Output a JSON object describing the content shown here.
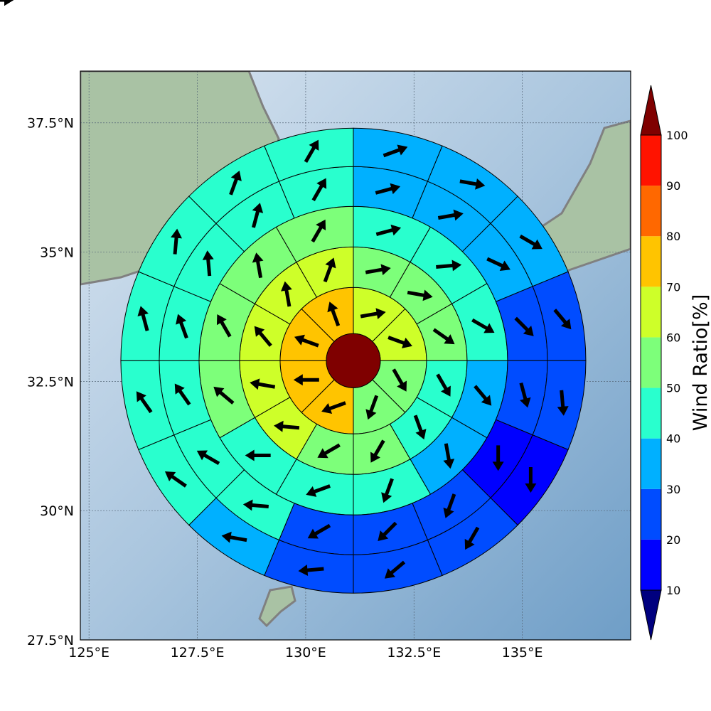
{
  "chart_data": {
    "type": "heatmap",
    "title": "",
    "xlabel": "",
    "ylabel": "",
    "projection": "map",
    "xlim": [
      124.8,
      137.5
    ],
    "ylim": [
      27.5,
      38.5
    ],
    "grid": true,
    "x_ticks": [
      125,
      127.5,
      130,
      132.5,
      135
    ],
    "x_tick_labels": [
      "125°E",
      "127.5°E",
      "130°E",
      "132.5°E",
      "135°E"
    ],
    "y_ticks": [
      27.5,
      30,
      32.5,
      35,
      37.5
    ],
    "y_tick_labels": [
      "27.5°N",
      "30°N",
      "32.5°N",
      "35°N",
      "37.5°N"
    ],
    "center": {
      "lon": 131.1,
      "lat": 32.9
    },
    "center_value": 105,
    "rings": [
      {
        "ring": 1,
        "sectors": 8,
        "values": [
          62,
          62,
          55,
          55,
          72,
          72,
          72,
          72
        ],
        "arrow_deg": [
          80,
          110,
          150,
          200,
          250,
          270,
          290,
          340
        ]
      },
      {
        "ring": 2,
        "sectors": 12,
        "values": [
          56,
          54,
          52,
          45,
          42,
          53,
          58,
          65,
          63,
          64,
          64,
          62
        ],
        "arrow_deg": [
          80,
          100,
          125,
          150,
          160,
          210,
          240,
          275,
          280,
          320,
          350,
          20
        ]
      },
      {
        "ring": 3,
        "sectors": 12,
        "values": [
          44,
          44,
          44,
          35,
          34,
          40,
          44,
          44,
          52,
          52,
          52,
          52
        ],
        "arrow_deg": [
          75,
          85,
          120,
          140,
          170,
          200,
          250,
          270,
          310,
          330,
          350,
          30
        ]
      },
      {
        "ring": 4,
        "sectors": 16,
        "values": [
          36,
          32,
          34,
          28,
          28,
          16,
          24,
          22,
          24,
          41,
          41,
          41,
          48,
          48,
          44,
          44
        ],
        "arrow_deg": [
          75,
          80,
          115,
          135,
          165,
          180,
          200,
          225,
          240,
          275,
          300,
          325,
          340,
          355,
          15,
          30
        ]
      },
      {
        "ring": 5,
        "sectors": 16,
        "values": [
          35,
          33,
          36,
          28,
          24,
          14,
          22,
          22,
          22,
          34,
          43,
          43,
          41,
          44,
          44,
          44
        ],
        "arrow_deg": [
          70,
          100,
          120,
          140,
          175,
          180,
          210,
          230,
          265,
          280,
          305,
          325,
          345,
          5,
          20,
          30
        ]
      },
      {
        "ring": 6,
        "sectors": 16,
        "values": [
          38,
          18,
          34,
          27,
          20,
          14,
          21,
          22,
          23,
          35,
          36,
          36,
          41,
          41,
          48,
          41
        ],
        "arrow_deg": [
          70,
          115,
          130,
          160,
          175,
          220,
          235,
          255,
          265,
          295,
          300,
          325,
          345,
          350,
          25,
          70
        ]
      }
    ],
    "colorbar": {
      "label": "Wind Ratio[%]",
      "boundaries": [
        10,
        20,
        30,
        40,
        50,
        60,
        70,
        80,
        90,
        100
      ],
      "tick_labels": [
        "10",
        "20",
        "30",
        "40",
        "50",
        "60",
        "70",
        "80",
        "90",
        "100"
      ],
      "colors": [
        "#0000ff",
        "#004cff",
        "#00b0ff",
        "#29ffce",
        "#7dff7a",
        "#ceff29",
        "#ffc400",
        "#ff6800",
        "#ff1300"
      ],
      "under_color": "#00007f",
      "over_color": "#7f0000",
      "extend": "both"
    }
  }
}
